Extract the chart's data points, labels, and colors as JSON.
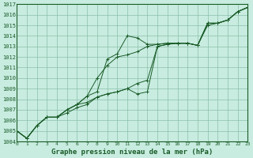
{
  "background_color": "#c8ece0",
  "grid_color": "#8bbfaa",
  "line_color": "#1a5c28",
  "title": "Graphe pression niveau de la mer (hPa)",
  "xlim": [
    0,
    23
  ],
  "ylim": [
    1004,
    1017
  ],
  "xticks": [
    0,
    1,
    2,
    3,
    4,
    5,
    6,
    7,
    8,
    9,
    10,
    11,
    12,
    13,
    14,
    15,
    16,
    17,
    18,
    19,
    20,
    21,
    22,
    23
  ],
  "yticks": [
    1004,
    1005,
    1006,
    1007,
    1008,
    1009,
    1010,
    1011,
    1012,
    1013,
    1014,
    1015,
    1016,
    1017
  ],
  "series": [
    [
      1005.0,
      1004.3,
      1005.5,
      1006.3,
      1006.3,
      1007.0,
      1007.5,
      1008.3,
      1008.7,
      1011.8,
      1012.3,
      1014.0,
      1013.8,
      1013.2,
      1013.2,
      1013.3,
      1013.3,
      1013.3,
      1013.1,
      1015.2,
      1015.2,
      1015.5,
      1016.3,
      1016.7
    ],
    [
      1005.0,
      1004.3,
      1005.5,
      1006.3,
      1006.3,
      1007.0,
      1007.5,
      1008.3,
      1010.0,
      1011.2,
      1012.0,
      1012.2,
      1012.5,
      1013.0,
      1013.2,
      1013.3,
      1013.3,
      1013.3,
      1013.1,
      1015.2,
      1015.2,
      1015.5,
      1016.3,
      1016.7
    ],
    [
      1005.0,
      1004.3,
      1005.5,
      1006.3,
      1006.3,
      1007.0,
      1007.5,
      1007.7,
      1008.2,
      1008.5,
      1008.7,
      1009.0,
      1008.5,
      1008.7,
      1013.0,
      1013.2,
      1013.3,
      1013.3,
      1013.1,
      1015.2,
      1015.2,
      1015.5,
      1016.3,
      1016.7
    ],
    [
      1005.0,
      1004.3,
      1005.5,
      1006.3,
      1006.3,
      1006.7,
      1007.2,
      1007.5,
      1008.2,
      1008.5,
      1008.7,
      1009.0,
      1009.5,
      1009.8,
      1013.0,
      1013.2,
      1013.3,
      1013.3,
      1013.1,
      1015.0,
      1015.2,
      1015.5,
      1016.3,
      1016.7
    ]
  ]
}
